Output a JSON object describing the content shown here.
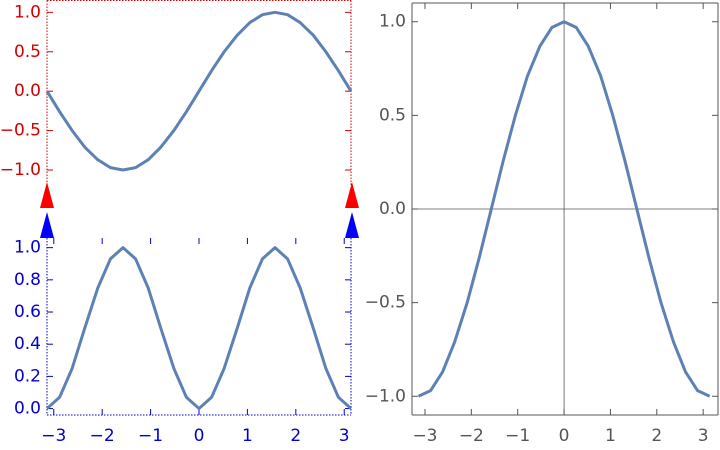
{
  "chart_data": [
    {
      "type": "line",
      "axis_color": "#d40000",
      "line_color": "#5e81b5",
      "xlim": [
        -3.14,
        3.14
      ],
      "ylim": [
        -1.19,
        1.15
      ],
      "yticks": [
        {
          "value": -1,
          "label": "−1.0"
        },
        {
          "value": -0.5,
          "label": "−0.5"
        },
        {
          "value": 0,
          "label": "0.0"
        },
        0.5,
        {
          "value": 1,
          "label": "1.0"
        }
      ],
      "x": [
        -3.14,
        -2.88,
        -2.62,
        -2.36,
        -2.09,
        -1.83,
        -1.57,
        -1.31,
        -1.05,
        -0.79,
        -0.52,
        -0.26,
        0,
        0.26,
        0.52,
        0.79,
        1.05,
        1.31,
        1.57,
        1.83,
        2.09,
        2.36,
        2.62,
        2.88,
        3.14
      ],
      "values": [
        0,
        -0.26,
        -0.5,
        -0.71,
        -0.87,
        -0.97,
        -1,
        -0.97,
        -0.87,
        -0.71,
        -0.5,
        -0.26,
        0,
        0.26,
        0.5,
        0.71,
        0.87,
        0.97,
        1,
        0.97,
        0.87,
        0.71,
        0.5,
        0.26,
        0
      ]
    },
    {
      "type": "line",
      "axis_color": "#0000d4",
      "line_color": "#5e81b5",
      "xlim": [
        -3.14,
        3.14
      ],
      "ylim": [
        -0.04,
        1.06
      ],
      "xticks": [
        {
          "value": -3,
          "label": "−3"
        },
        {
          "value": -2,
          "label": "−2"
        },
        {
          "value": -1,
          "label": "−1"
        },
        0,
        1,
        2,
        3
      ],
      "yticks": [
        {
          "value": 0,
          "label": "0.0"
        },
        0.2,
        0.4,
        0.6,
        0.8,
        {
          "value": 1,
          "label": "1.0"
        }
      ],
      "x": [
        -3.14,
        -2.88,
        -2.62,
        -2.36,
        -2.09,
        -1.83,
        -1.57,
        -1.31,
        -1.05,
        -0.79,
        -0.52,
        -0.26,
        0,
        0.26,
        0.52,
        0.79,
        1.05,
        1.31,
        1.57,
        1.83,
        2.09,
        2.36,
        2.62,
        2.88,
        3.14
      ],
      "values": [
        0,
        0.07,
        0.25,
        0.5,
        0.75,
        0.93,
        1,
        0.93,
        0.75,
        0.5,
        0.25,
        0.07,
        0,
        0.07,
        0.25,
        0.5,
        0.75,
        0.93,
        1,
        0.93,
        0.75,
        0.5,
        0.25,
        0.07,
        0
      ]
    },
    {
      "type": "line",
      "axis_color": "#555555",
      "line_color": "#5e81b5",
      "origin_axes": true,
      "xlim": [
        -3.28,
        3.32
      ],
      "ylim": [
        -1.1,
        1.1
      ],
      "xticks": [
        {
          "value": -3,
          "label": "−3"
        },
        {
          "value": -2,
          "label": "−2"
        },
        {
          "value": -1,
          "label": "−1"
        },
        0,
        1,
        2,
        3
      ],
      "yticks": [
        {
          "value": -1,
          "label": "−1.0"
        },
        {
          "value": -0.5,
          "label": "−0.5"
        },
        {
          "value": 0,
          "label": "0.0"
        },
        0.5,
        {
          "value": 1,
          "label": "1.0"
        }
      ],
      "x": [
        -3.14,
        -2.88,
        -2.62,
        -2.36,
        -2.09,
        -1.83,
        -1.57,
        -1.31,
        -1.05,
        -0.79,
        -0.52,
        -0.26,
        0,
        0.26,
        0.52,
        0.79,
        1.05,
        1.31,
        1.57,
        1.83,
        2.09,
        2.36,
        2.62,
        2.88,
        3.14
      ],
      "values": [
        -1,
        -0.97,
        -0.87,
        -0.71,
        -0.5,
        -0.26,
        0,
        0.26,
        0.5,
        0.71,
        0.87,
        0.97,
        1,
        0.97,
        0.87,
        0.71,
        0.5,
        0.26,
        0,
        -0.26,
        -0.5,
        -0.71,
        -0.87,
        -0.97,
        -1
      ]
    }
  ]
}
